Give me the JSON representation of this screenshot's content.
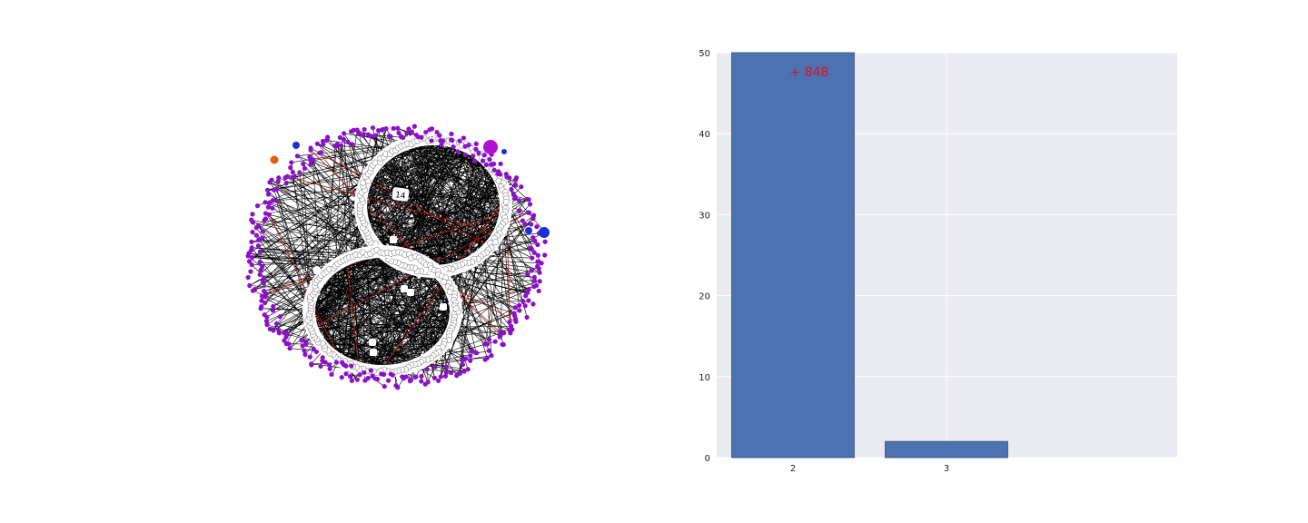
{
  "colors": {
    "plot_bg": "#eaeaf2",
    "grid": "#ffffff",
    "bar": "#4c72b0",
    "bar_edge": "#34507f",
    "node_purple": "#8b10c8",
    "node_blue": "#1a2fd8",
    "node_orange": "#e06010",
    "edge_black": "#000000",
    "edge_red": "#c01010",
    "annotation": "#d8102a"
  },
  "network_graph": {
    "node_label": "14"
  },
  "chart_data": {
    "type": "bar",
    "categories": [
      "2",
      "3"
    ],
    "values": [
      50,
      2
    ],
    "ylim": [
      0,
      50
    ],
    "yticks": [
      0,
      10,
      20,
      30,
      40,
      50
    ],
    "title": "",
    "xlabel": "",
    "ylabel": "",
    "grid": true,
    "annotation": {
      "text": "+ 848",
      "category": "2"
    }
  }
}
